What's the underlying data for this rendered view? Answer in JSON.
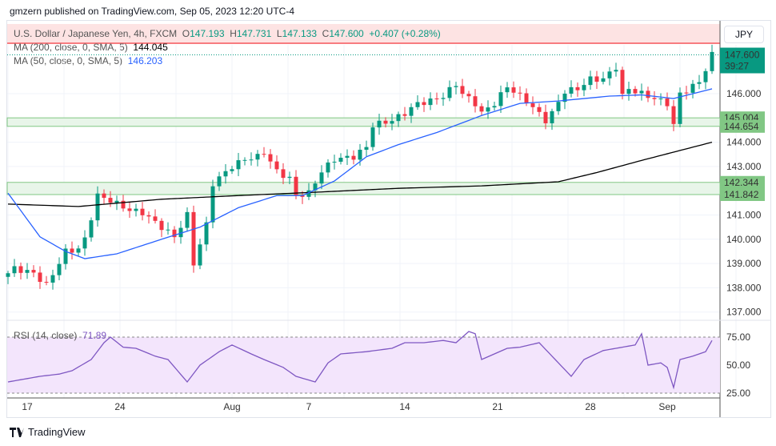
{
  "header": {
    "published": "gmzern published on TradingView.com, Sep 05, 2023 12:20 UTC-4"
  },
  "legend": {
    "symbol": "U.S. Dollar / Japanese Yen, 4h, FXCM",
    "o_label": "O",
    "o": "147.193",
    "h_label": "H",
    "h": "147.731",
    "l_label": "L",
    "l": "147.133",
    "c_label": "C",
    "c": "147.600",
    "change": "+0.407 (+0.28%)",
    "ma200_label": "MA (200, close, 0, SMA, 5)",
    "ma200_value": "144.045",
    "ma50_label": "MA (50, close, 0, SMA, 5)",
    "ma50_value": "146.203",
    "rsi_label": "RSI (14, close)",
    "rsi_value": "71.89"
  },
  "currency_button": "JPY",
  "footer": {
    "brand": "TradingView"
  },
  "colors": {
    "up": "#089981",
    "down": "#f23645",
    "ma50": "#2962ff",
    "ma200": "#000000",
    "rsi": "#7e57c2",
    "zone": "#81c784"
  },
  "chart_data": {
    "type": "candlestick",
    "price_ticks": [
      "146.000",
      "144.000",
      "143.000",
      "141.000",
      "140.000",
      "139.000",
      "138.000",
      "137.000"
    ],
    "price_tick_values": [
      146,
      144,
      143,
      141,
      140,
      139,
      138,
      137
    ],
    "last_price": "147.600",
    "countdown": "39:27",
    "zones": [
      {
        "top": "145.004",
        "bottom": "144.654"
      },
      {
        "top": "142.344",
        "bottom": "141.842"
      }
    ],
    "time_labels": [
      {
        "label": "17",
        "i": 3
      },
      {
        "label": "24",
        "i": 17.5
      },
      {
        "label": "Aug",
        "i": 35
      },
      {
        "label": "7",
        "i": 47
      },
      {
        "label": "14",
        "i": 62
      },
      {
        "label": "21",
        "i": 76.5
      },
      {
        "label": "28",
        "i": 91
      },
      {
        "label": "Sep",
        "i": 103
      }
    ],
    "close_anchors": [
      [
        0,
        138.6
      ],
      [
        1,
        138.8
      ],
      [
        4,
        138.6
      ],
      [
        6,
        138.1
      ],
      [
        9,
        139.5
      ],
      [
        11,
        139.6
      ],
      [
        12,
        140
      ],
      [
        14,
        141.8
      ],
      [
        16,
        141.6
      ],
      [
        19,
        141.2
      ],
      [
        21,
        141.1
      ],
      [
        24,
        140.5
      ],
      [
        26,
        140.1
      ],
      [
        28,
        141
      ],
      [
        29,
        139
      ],
      [
        31,
        140.6
      ],
      [
        32,
        142.3
      ],
      [
        35,
        143
      ],
      [
        37,
        143.3
      ],
      [
        39,
        143.4
      ],
      [
        40,
        143.6
      ],
      [
        42,
        142.8
      ],
      [
        44,
        142.5
      ],
      [
        45,
        141.8
      ],
      [
        47,
        141.9
      ],
      [
        49,
        142.8
      ],
      [
        51,
        143.3
      ],
      [
        54,
        143.4
      ],
      [
        56,
        143.8
      ],
      [
        57,
        144.7
      ],
      [
        60,
        144.9
      ],
      [
        62,
        145.2
      ],
      [
        64,
        145.6
      ],
      [
        66,
        145.7
      ],
      [
        68,
        145.9
      ],
      [
        70,
        146.4
      ],
      [
        71,
        146
      ],
      [
        73,
        145.6
      ],
      [
        74,
        145.2
      ],
      [
        76,
        145.6
      ],
      [
        78,
        146.3
      ],
      [
        79,
        146.1
      ],
      [
        81,
        145.7
      ],
      [
        84,
        144.9
      ],
      [
        85,
        145.2
      ],
      [
        87,
        146.1
      ],
      [
        89,
        146.2
      ],
      [
        91,
        146.6
      ],
      [
        93,
        146.6
      ],
      [
        95,
        147.1
      ],
      [
        96,
        145.9
      ],
      [
        97,
        146.2
      ],
      [
        99,
        146
      ],
      [
        101,
        145.8
      ],
      [
        103,
        145.6
      ],
      [
        104,
        144.7
      ],
      [
        105,
        146
      ],
      [
        107,
        146.3
      ],
      [
        108,
        146.5
      ],
      [
        109,
        147
      ],
      [
        110,
        147.6
      ]
    ],
    "ma200": [
      [
        0,
        141.45
      ],
      [
        11,
        141.35
      ],
      [
        24,
        141.65
      ],
      [
        36,
        141.8
      ],
      [
        49,
        141.95
      ],
      [
        61,
        142.1
      ],
      [
        74,
        142.2
      ],
      [
        86,
        142.37
      ],
      [
        92,
        142.75
      ],
      [
        99,
        143.25
      ],
      [
        110,
        144.0
      ]
    ],
    "ma50": [
      [
        0,
        141.9
      ],
      [
        5,
        140.1
      ],
      [
        9,
        139.5
      ],
      [
        12,
        139.2
      ],
      [
        17,
        139.4
      ],
      [
        24,
        140
      ],
      [
        30,
        140.5
      ],
      [
        36,
        141.3
      ],
      [
        42,
        141.8
      ],
      [
        46,
        141.8
      ],
      [
        51,
        142.4
      ],
      [
        56,
        143.4
      ],
      [
        61,
        143.9
      ],
      [
        67,
        144.4
      ],
      [
        74,
        145.1
      ],
      [
        80,
        145.6
      ],
      [
        86,
        145.7
      ],
      [
        94,
        145.9
      ],
      [
        99,
        145.95
      ],
      [
        104,
        145.8
      ],
      [
        110,
        146.2
      ]
    ],
    "rsi_ticks": [
      "75.00",
      "50.00",
      "25.00"
    ],
    "rsi_tick_values": [
      75,
      50,
      25
    ],
    "rsi": [
      [
        0,
        35
      ],
      [
        3,
        38
      ],
      [
        5,
        40
      ],
      [
        8,
        42
      ],
      [
        10,
        45
      ],
      [
        13,
        55
      ],
      [
        15,
        70
      ],
      [
        16,
        75
      ],
      [
        18,
        66
      ],
      [
        20,
        65
      ],
      [
        23,
        58
      ],
      [
        25,
        55
      ],
      [
        28,
        35
      ],
      [
        30,
        50
      ],
      [
        33,
        62
      ],
      [
        35,
        68
      ],
      [
        38,
        60
      ],
      [
        40,
        55
      ],
      [
        43,
        48
      ],
      [
        45,
        40
      ],
      [
        48,
        35
      ],
      [
        50,
        52
      ],
      [
        52,
        60
      ],
      [
        56,
        62
      ],
      [
        60,
        65
      ],
      [
        62,
        70
      ],
      [
        65,
        70
      ],
      [
        68,
        72
      ],
      [
        70,
        70
      ],
      [
        72,
        80
      ],
      [
        73,
        78
      ],
      [
        74,
        55
      ],
      [
        76,
        60
      ],
      [
        78,
        65
      ],
      [
        80,
        66
      ],
      [
        83,
        70
      ],
      [
        86,
        52
      ],
      [
        88,
        40
      ],
      [
        90,
        55
      ],
      [
        93,
        63
      ],
      [
        95,
        65
      ],
      [
        98,
        68
      ],
      [
        99,
        78
      ],
      [
        100,
        50
      ],
      [
        102,
        52
      ],
      [
        103,
        48
      ],
      [
        104,
        30
      ],
      [
        105,
        55
      ],
      [
        107,
        58
      ],
      [
        109,
        62
      ],
      [
        110,
        72
      ]
    ]
  }
}
